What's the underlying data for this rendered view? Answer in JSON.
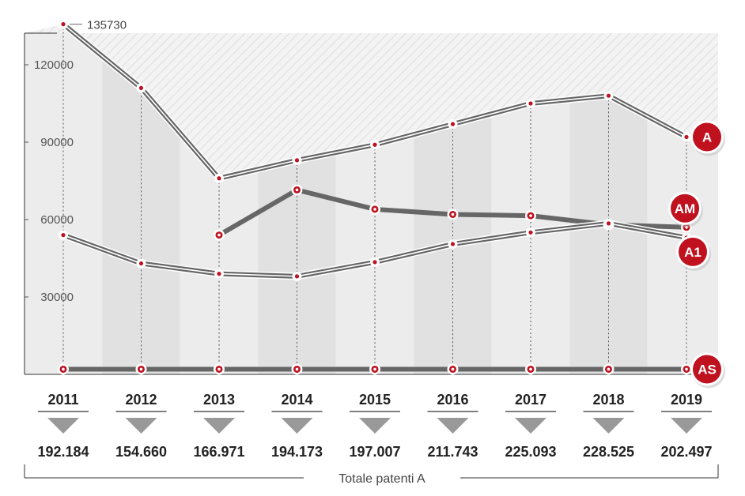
{
  "chart_data": {
    "type": "line",
    "categories": [
      "2011",
      "2012",
      "2013",
      "2014",
      "2015",
      "2016",
      "2017",
      "2018",
      "2019"
    ],
    "yticks": [
      "30000",
      "60000",
      "90000",
      "120000"
    ],
    "ylim": [
      0,
      135730
    ],
    "peak_label": "135730",
    "series": [
      {
        "name": "A",
        "style": "double",
        "values": [
          135730,
          111000,
          76000,
          83000,
          89000,
          97000,
          105000,
          108000,
          92000
        ]
      },
      {
        "name": "AM",
        "style": "thick",
        "values": [
          null,
          null,
          54000,
          71500,
          64000,
          62000,
          61500,
          58000,
          57000
        ]
      },
      {
        "name": "A1",
        "style": "double",
        "values": [
          54000,
          43000,
          39000,
          38000,
          43500,
          50500,
          55000,
          58500,
          53000
        ]
      },
      {
        "name": "AS",
        "style": "thick",
        "values": [
          2000,
          2000,
          2000,
          2000,
          2000,
          2000,
          2000,
          2000,
          2000
        ]
      }
    ],
    "totals": [
      "192.184",
      "154.660",
      "166.971",
      "194.173",
      "197.007",
      "211.743",
      "225.093",
      "228.525",
      "202.497"
    ],
    "footer_label": "Totale patenti A"
  },
  "colors": {
    "accent": "#c0111f",
    "line": "#666666",
    "band_light": "#ececec",
    "band_dark": "#e1e1e1"
  }
}
